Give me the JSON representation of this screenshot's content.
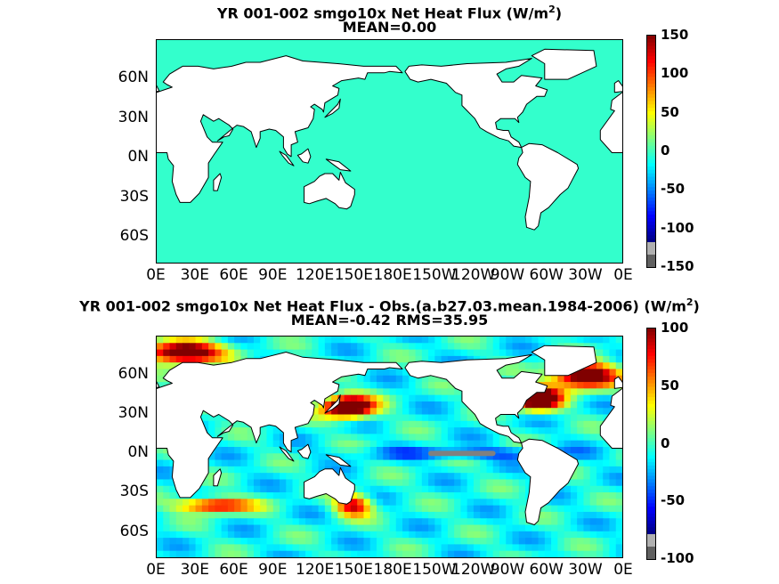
{
  "chart_data": [
    {
      "type": "heatmap",
      "title": "YR 001-002 smgo10x  Net Heat Flux (W/m",
      "title_sup": "2",
      "title_end": ")",
      "subtitle": "MEAN=0.00",
      "x_ticks": [
        "0E",
        "30E",
        "60E",
        "90E",
        "120E",
        "150E",
        "180E",
        "150W",
        "120W",
        "90W",
        "60W",
        "30W",
        "0E"
      ],
      "y_ticks": [
        "60N",
        "30N",
        "0N",
        "30S",
        "60S"
      ],
      "y_tick_values": [
        60,
        30,
        0,
        -30,
        -60
      ],
      "xlim": [
        0,
        360
      ],
      "ylim": [
        -80,
        90
      ],
      "field": "uniform",
      "field_value": 0,
      "colorbar": {
        "range": [
          -150,
          150
        ],
        "ticks": [
          "150",
          "100",
          "50",
          "0",
          "-50",
          "-100",
          "-150"
        ],
        "tick_values": [
          150,
          100,
          50,
          0,
          -50,
          -100,
          -150
        ]
      }
    },
    {
      "type": "heatmap",
      "title": "YR 001-002 smgo10x  Net Heat Flux - Obs.(a.b27.03.mean.1984-2006) (W/m",
      "title_sup": "2",
      "title_end": ")",
      "subtitle": "MEAN=-0.42 RMS=35.95",
      "x_ticks": [
        "0E",
        "30E",
        "60E",
        "90E",
        "120E",
        "150E",
        "180E",
        "150W",
        "120W",
        "90W",
        "60W",
        "30W",
        "0E"
      ],
      "y_ticks": [
        "60N",
        "30N",
        "0N",
        "30S",
        "60S"
      ],
      "y_tick_values": [
        60,
        30,
        0,
        -30,
        -60
      ],
      "xlim": [
        0,
        360
      ],
      "ylim": [
        -80,
        90
      ],
      "field": "anomaly",
      "colorbar": {
        "range": [
          -100,
          100
        ],
        "ticks": [
          "100",
          "50",
          "0",
          "-50",
          "-100"
        ],
        "tick_values": [
          100,
          50,
          0,
          -50,
          -100
        ]
      }
    }
  ],
  "colors": {
    "uniform_field": "#33ffcc",
    "land": "#ffffff",
    "coast": "#000000",
    "masked": "#808080",
    "colormap": [
      "#000080",
      "#0000ff",
      "#0080ff",
      "#00ffff",
      "#80ff80",
      "#ffff00",
      "#ff8000",
      "#ff0000",
      "#800000"
    ]
  }
}
